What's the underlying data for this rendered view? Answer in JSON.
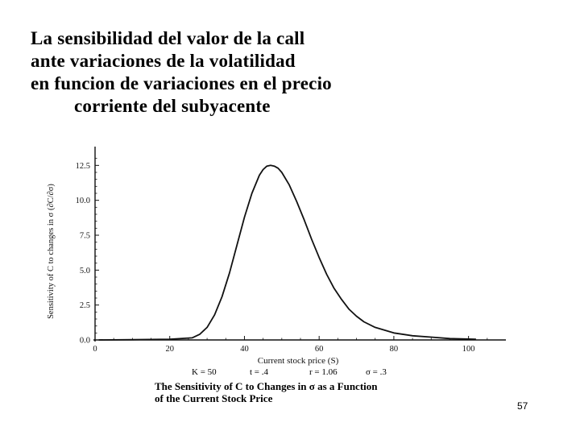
{
  "slide": {
    "title_lines": [
      "La sensibilidad del valor de la call",
      "ante variaciones de la volatilidad",
      "en funcion de variaciones en el precio",
      "corriente del subyacente"
    ],
    "page_number": "57"
  },
  "figure": {
    "parameters": [
      "K = 50",
      "t = .4",
      "r = 1.06",
      "σ = .3"
    ],
    "caption_lines": [
      "The Sensitivity of C to Changes in σ as a Function",
      "of the Current Stock Price"
    ]
  },
  "chart_data": {
    "type": "line",
    "title": "",
    "xlabel": "Current stock price (S)",
    "ylabel": "Sensitivity of C to changes in σ (∂C/∂σ)",
    "xlim": [
      0,
      110
    ],
    "ylim": [
      0,
      13.5
    ],
    "x_ticks": [
      0,
      20,
      40,
      60,
      80,
      100
    ],
    "x_tick_labels": [
      "0",
      "20",
      "40",
      "60",
      "80",
      "100"
    ],
    "y_ticks": [
      0,
      2.5,
      5,
      7.5,
      10,
      12.5
    ],
    "y_tick_labels": [
      "0.0",
      "2.5",
      "5.0",
      "7.5",
      "10.0",
      "12.5"
    ],
    "grid": false,
    "series": [
      {
        "color": "#111111",
        "x": [
          1,
          10,
          20,
          26,
          28,
          30,
          32,
          34,
          36,
          38,
          40,
          42,
          44,
          45,
          46,
          47,
          48,
          49,
          50,
          52,
          54,
          56,
          58,
          60,
          62,
          64,
          66,
          68,
          70,
          72,
          75,
          80,
          85,
          90,
          95,
          102
        ],
        "y": [
          0.0,
          0.02,
          0.05,
          0.15,
          0.4,
          0.9,
          1.8,
          3.1,
          4.8,
          6.8,
          8.8,
          10.5,
          11.8,
          12.2,
          12.45,
          12.5,
          12.45,
          12.3,
          12.0,
          11.1,
          9.9,
          8.6,
          7.2,
          5.9,
          4.7,
          3.7,
          2.9,
          2.2,
          1.7,
          1.3,
          0.9,
          0.5,
          0.3,
          0.2,
          0.1,
          0.05
        ]
      }
    ]
  }
}
